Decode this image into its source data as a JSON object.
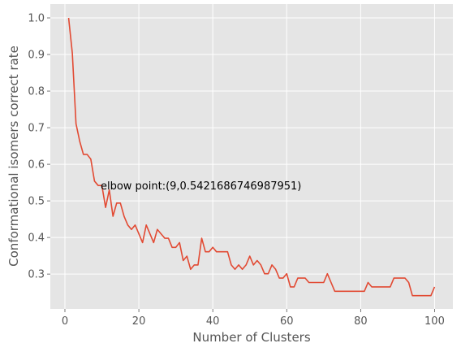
{
  "chart_data": {
    "type": "line",
    "title": "",
    "xlabel": "Number of Clusters",
    "ylabel": "Conformational isomers correct rate",
    "xlim": [
      -3.95,
      104.95
    ],
    "ylim": [
      0.2048,
      1.0378
    ],
    "xticks": [
      0,
      20,
      40,
      60,
      80,
      100
    ],
    "yticks": [
      0.3,
      0.4,
      0.5,
      0.6,
      0.7,
      0.8,
      0.9,
      1.0
    ],
    "xtick_labels": [
      "0",
      "20",
      "40",
      "60",
      "80",
      "100"
    ],
    "ytick_labels": [
      "0.3",
      "0.4",
      "0.5",
      "0.6",
      "0.7",
      "0.8",
      "0.9",
      "1.0"
    ],
    "grid": true,
    "background_color": "#e5e5e5",
    "grid_color": "#ffffff",
    "line_color": "#e24a33",
    "annotation": {
      "text": "elbow point:(9,0.5421686746987951)",
      "x": 9,
      "y": 0.5421686746987951
    },
    "series": [
      {
        "x": [
          1,
          2,
          3,
          4,
          5,
          6,
          7,
          8,
          9,
          10,
          11,
          12,
          13,
          14,
          15,
          16,
          17,
          18,
          19,
          20,
          21,
          22,
          23,
          24,
          25,
          26,
          27,
          28,
          29,
          30,
          31,
          32,
          33,
          34,
          35,
          36,
          37,
          38,
          39,
          40,
          41,
          42,
          43,
          44,
          45,
          46,
          47,
          48,
          49,
          50,
          51,
          52,
          53,
          54,
          55,
          56,
          57,
          58,
          59,
          60,
          61,
          62,
          63,
          64,
          65,
          66,
          67,
          68,
          69,
          70,
          71,
          72,
          73,
          74,
          75,
          76,
          77,
          78,
          79,
          80,
          81,
          82,
          83,
          84,
          85,
          86,
          87,
          88,
          89,
          90,
          91,
          92,
          93,
          94,
          95,
          96,
          97,
          98,
          99,
          100
        ],
        "values": [
          1.0,
          0.904,
          0.711,
          0.663,
          0.627,
          0.627,
          0.614,
          0.554,
          0.542,
          0.542,
          0.482,
          0.53,
          0.458,
          0.494,
          0.494,
          0.458,
          0.434,
          0.422,
          0.434,
          0.41,
          0.386,
          0.434,
          0.41,
          0.386,
          0.422,
          0.41,
          0.398,
          0.398,
          0.373,
          0.373,
          0.386,
          0.337,
          0.349,
          0.313,
          0.325,
          0.325,
          0.398,
          0.361,
          0.361,
          0.373,
          0.361,
          0.361,
          0.361,
          0.361,
          0.325,
          0.313,
          0.325,
          0.313,
          0.325,
          0.349,
          0.325,
          0.337,
          0.325,
          0.301,
          0.301,
          0.325,
          0.313,
          0.289,
          0.289,
          0.301,
          0.265,
          0.265,
          0.289,
          0.289,
          0.289,
          0.277,
          0.277,
          0.277,
          0.277,
          0.277,
          0.301,
          0.277,
          0.253,
          0.253,
          0.253,
          0.253,
          0.253,
          0.253,
          0.253,
          0.253,
          0.253,
          0.277,
          0.265,
          0.265,
          0.265,
          0.265,
          0.265,
          0.265,
          0.289,
          0.289,
          0.289,
          0.289,
          0.277,
          0.241,
          0.241,
          0.241,
          0.241,
          0.241,
          0.241,
          0.265
        ]
      }
    ]
  }
}
